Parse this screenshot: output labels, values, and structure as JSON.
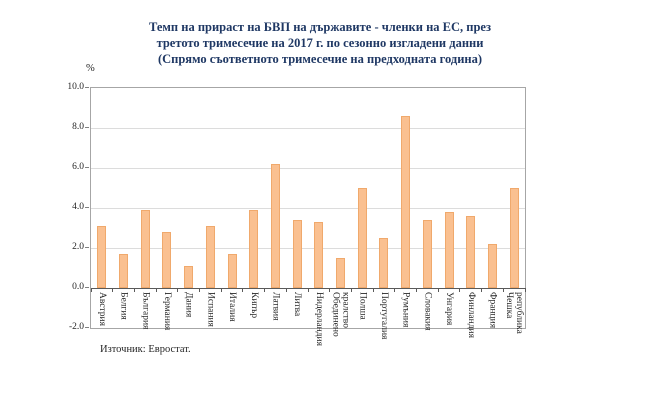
{
  "title": {
    "lines": [
      "Темп на прираст на БВП на държавите - членки на ЕС, през",
      "третото тримесечие на 2017 г. по сезонно изгладени данни",
      "(Спрямо съответното тримесечие на предходната година)"
    ]
  },
  "source": "Източник: Евростат.",
  "chart_data": {
    "type": "bar",
    "title": "Темп на прираст на БВП на държавите - членки на ЕС, през третото тримесечие на 2017 г. по сезонно изгладени данни (Спрямо съответното тримесечие на предходната година)",
    "unit_label": "%",
    "categories": [
      "Австрия",
      "Белгия",
      "България",
      "Германия",
      "Дания",
      "Испания",
      "Италия",
      "Кипър",
      "Латвия",
      "Литва",
      "Нидерландия",
      "Обединено кралство",
      "Полша",
      "Португалия",
      "Румъния",
      "Словакия",
      "Унгария",
      "Финландия",
      "Франция",
      "Чешка република"
    ],
    "values": [
      3.1,
      1.7,
      3.9,
      2.8,
      1.1,
      3.1,
      1.7,
      3.9,
      6.2,
      3.4,
      3.3,
      1.5,
      5.0,
      2.5,
      8.6,
      3.4,
      3.8,
      3.6,
      2.2,
      5.0
    ],
    "xlabel": "",
    "ylabel": "%",
    "ylim": [
      -2,
      10
    ],
    "yticks": [
      10,
      8,
      6,
      4,
      2,
      0,
      -2
    ],
    "ytick_labels": [
      "10.0",
      "8.0",
      "6.0",
      "4.0",
      "2.0",
      "0.0",
      "-2.0"
    ],
    "grid": true,
    "legend": false,
    "bar_color": "#FAC090",
    "bar_border_color": "#F0A96C",
    "gridline_color": "#DCDCDC",
    "axis_color": "#595959",
    "plot_border_color": "#A6A6A6",
    "title_color": "#1F3864"
  }
}
